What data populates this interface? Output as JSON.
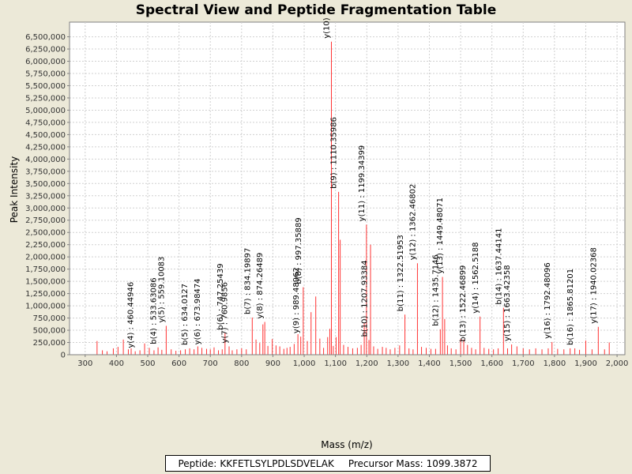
{
  "chart_data": {
    "type": "bar",
    "title": "Spectral View and Peptide Fragmentation Table",
    "xlabel": "Mass (m/z)",
    "ylabel": "Peak Intensity",
    "xlim": [
      250,
      2025
    ],
    "ylim": [
      0,
      6800000
    ],
    "xticks": [
      300,
      400,
      500,
      600,
      700,
      800,
      900,
      1000,
      1100,
      1200,
      1300,
      1400,
      1500,
      1600,
      1700,
      1800,
      1900,
      2000
    ],
    "xtick_labels": [
      "300",
      "400",
      "500",
      "600",
      "700",
      "800",
      "900",
      "1,000",
      "1,100",
      "1,200",
      "1,300",
      "1,400",
      "1,500",
      "1,600",
      "1,700",
      "1,800",
      "1,900",
      "2,000"
    ],
    "yticks": [
      0,
      250000,
      500000,
      750000,
      1000000,
      1250000,
      1500000,
      1750000,
      2000000,
      2250000,
      2500000,
      2750000,
      3000000,
      3250000,
      3500000,
      3750000,
      4000000,
      4250000,
      4500000,
      4750000,
      5000000,
      5250000,
      5500000,
      5750000,
      6000000,
      6250000,
      6500000
    ],
    "ytick_labels": [
      "0",
      "250,000",
      "500,000",
      "750,000",
      "1,000,000",
      "1,250,000",
      "1,500,000",
      "1,750,000",
      "2,000,000",
      "2,250,000",
      "2,500,000",
      "2,750,000",
      "3,000,000",
      "3,250,000",
      "3,500,000",
      "3,750,000",
      "4,000,000",
      "4,250,000",
      "4,500,000",
      "4,750,000",
      "5,000,000",
      "5,250,000",
      "5,500,000",
      "5,750,000",
      "6,000,000",
      "6,250,000",
      "6,500,000"
    ],
    "grid": true,
    "color": "#ff3333",
    "peaks": [
      [
        338,
        280000
      ],
      [
        355,
        90000
      ],
      [
        370,
        70000
      ],
      [
        390,
        130000
      ],
      [
        405,
        160000
      ],
      [
        422,
        310000
      ],
      [
        438,
        110000
      ],
      [
        447,
        130000
      ],
      [
        460,
        70000
      ],
      [
        475,
        90000
      ],
      [
        490,
        230000
      ],
      [
        505,
        140000
      ],
      [
        520,
        90000
      ],
      [
        533,
        150000
      ],
      [
        545,
        100000
      ],
      [
        559,
        590000
      ],
      [
        575,
        110000
      ],
      [
        590,
        80000
      ],
      [
        605,
        90000
      ],
      [
        620,
        110000
      ],
      [
        634,
        130000
      ],
      [
        648,
        110000
      ],
      [
        660,
        170000
      ],
      [
        673,
        140000
      ],
      [
        688,
        120000
      ],
      [
        700,
        110000
      ],
      [
        712,
        150000
      ],
      [
        726,
        90000
      ],
      [
        738,
        110000
      ],
      [
        747,
        440000
      ],
      [
        760,
        170000
      ],
      [
        770,
        90000
      ],
      [
        785,
        110000
      ],
      [
        800,
        130000
      ],
      [
        815,
        110000
      ],
      [
        834,
        760000
      ],
      [
        846,
        310000
      ],
      [
        858,
        240000
      ],
      [
        868,
        620000
      ],
      [
        874,
        670000
      ],
      [
        884,
        180000
      ],
      [
        898,
        320000
      ],
      [
        910,
        190000
      ],
      [
        922,
        170000
      ],
      [
        935,
        120000
      ],
      [
        945,
        140000
      ],
      [
        955,
        160000
      ],
      [
        968,
        220000
      ],
      [
        980,
        420000
      ],
      [
        989,
        370000
      ],
      [
        997,
        1380000
      ],
      [
        1010,
        280000
      ],
      [
        1022,
        870000
      ],
      [
        1037,
        1190000
      ],
      [
        1050,
        330000
      ],
      [
        1062,
        140000
      ],
      [
        1075,
        360000
      ],
      [
        1082,
        530000
      ],
      [
        1087,
        6400000
      ],
      [
        1093,
        180000
      ],
      [
        1102,
        360000
      ],
      [
        1110,
        3330000
      ],
      [
        1115,
        2350000
      ],
      [
        1126,
        200000
      ],
      [
        1140,
        160000
      ],
      [
        1155,
        130000
      ],
      [
        1170,
        140000
      ],
      [
        1182,
        200000
      ],
      [
        1192,
        650000
      ],
      [
        1199,
        2660000
      ],
      [
        1207,
        300000
      ],
      [
        1212,
        2250000
      ],
      [
        1222,
        170000
      ],
      [
        1235,
        120000
      ],
      [
        1250,
        160000
      ],
      [
        1262,
        140000
      ],
      [
        1275,
        110000
      ],
      [
        1290,
        140000
      ],
      [
        1305,
        190000
      ],
      [
        1322,
        820000
      ],
      [
        1335,
        130000
      ],
      [
        1348,
        110000
      ],
      [
        1362,
        1870000
      ],
      [
        1375,
        160000
      ],
      [
        1390,
        140000
      ],
      [
        1405,
        120000
      ],
      [
        1420,
        120000
      ],
      [
        1435,
        520000
      ],
      [
        1442,
        1590000
      ],
      [
        1449,
        730000
      ],
      [
        1458,
        190000
      ],
      [
        1470,
        130000
      ],
      [
        1485,
        110000
      ],
      [
        1500,
        320000
      ],
      [
        1510,
        310000
      ],
      [
        1522,
        200000
      ],
      [
        1535,
        140000
      ],
      [
        1548,
        110000
      ],
      [
        1562,
        780000
      ],
      [
        1575,
        140000
      ],
      [
        1590,
        120000
      ],
      [
        1605,
        110000
      ],
      [
        1620,
        130000
      ],
      [
        1637,
        960000
      ],
      [
        1650,
        130000
      ],
      [
        1663,
        210000
      ],
      [
        1680,
        170000
      ],
      [
        1700,
        130000
      ],
      [
        1720,
        110000
      ],
      [
        1740,
        130000
      ],
      [
        1760,
        110000
      ],
      [
        1780,
        130000
      ],
      [
        1792,
        260000
      ],
      [
        1810,
        120000
      ],
      [
        1830,
        110000
      ],
      [
        1850,
        130000
      ],
      [
        1865,
        130000
      ],
      [
        1880,
        100000
      ],
      [
        1900,
        290000
      ],
      [
        1920,
        110000
      ],
      [
        1940,
        570000
      ],
      [
        1960,
        110000
      ],
      [
        1975,
        250000
      ]
    ],
    "annotations": [
      {
        "label": "y(4) : 460.44946",
        "x": 460.44946,
        "y": 70000
      },
      {
        "label": "b(4) : 533.63086",
        "x": 533.63086,
        "y": 150000
      },
      {
        "label": "y(5) : 559.10083",
        "x": 559.10083,
        "y": 590000
      },
      {
        "label": "b(5) : 634.0127",
        "x": 634.0127,
        "y": 130000
      },
      {
        "label": "y(6) : 673.98474",
        "x": 673.98474,
        "y": 140000
      },
      {
        "label": "b(6) : 747.25439",
        "x": 747.25439,
        "y": 440000
      },
      {
        "label": "y(7) : 760.9856",
        "x": 760.9856,
        "y": 170000
      },
      {
        "label": "b(7) : 834.19897",
        "x": 834.19897,
        "y": 760000
      },
      {
        "label": "y(8) : 874.26489",
        "x": 874.26489,
        "y": 670000
      },
      {
        "label": "y(9) : 989.48962",
        "x": 989.48962,
        "y": 370000
      },
      {
        "label": "b(8) : 997.35889",
        "x": 997.35889,
        "y": 1380000
      },
      {
        "label": "y(10)",
        "x": 1087,
        "y": 6400000
      },
      {
        "label": "b(9) : 1110.35986",
        "x": 1110.35986,
        "y": 3330000
      },
      {
        "label": "y(11) : 1199.34399",
        "x": 1199.34399,
        "y": 2660000
      },
      {
        "label": "b(10) : 1207.93384",
        "x": 1207.93384,
        "y": 300000
      },
      {
        "label": "b(11) : 1322.51953",
        "x": 1322.51953,
        "y": 820000
      },
      {
        "label": "y(12) : 1362.46802",
        "x": 1362.46802,
        "y": 1870000
      },
      {
        "label": "b(12) : 1435.7146",
        "x": 1435.7146,
        "y": 520000
      },
      {
        "label": "y(13) : 1449.48071",
        "x": 1449.48071,
        "y": 1590000
      },
      {
        "label": "b(13) : 1522.46899",
        "x": 1522.46899,
        "y": 200000
      },
      {
        "label": "y(14) : 1562.5188",
        "x": 1562.5188,
        "y": 780000
      },
      {
        "label": "b(14) : 1637.44141",
        "x": 1637.44141,
        "y": 960000
      },
      {
        "label": "y(15) : 1663.42358",
        "x": 1663.42358,
        "y": 210000
      },
      {
        "label": "y(16) : 1792.48096",
        "x": 1792.48096,
        "y": 260000
      },
      {
        "label": "b(16) : 1865.81201",
        "x": 1865.81201,
        "y": 130000
      },
      {
        "label": "y(17) : 1940.02368",
        "x": 1940.02368,
        "y": 570000
      }
    ]
  },
  "footer": {
    "peptide_label": "Peptide:",
    "peptide_value": "KKFETLSYLPDLSDVELAK",
    "precursor_label": "Precursor Mass:",
    "precursor_value": "1099.3872"
  }
}
